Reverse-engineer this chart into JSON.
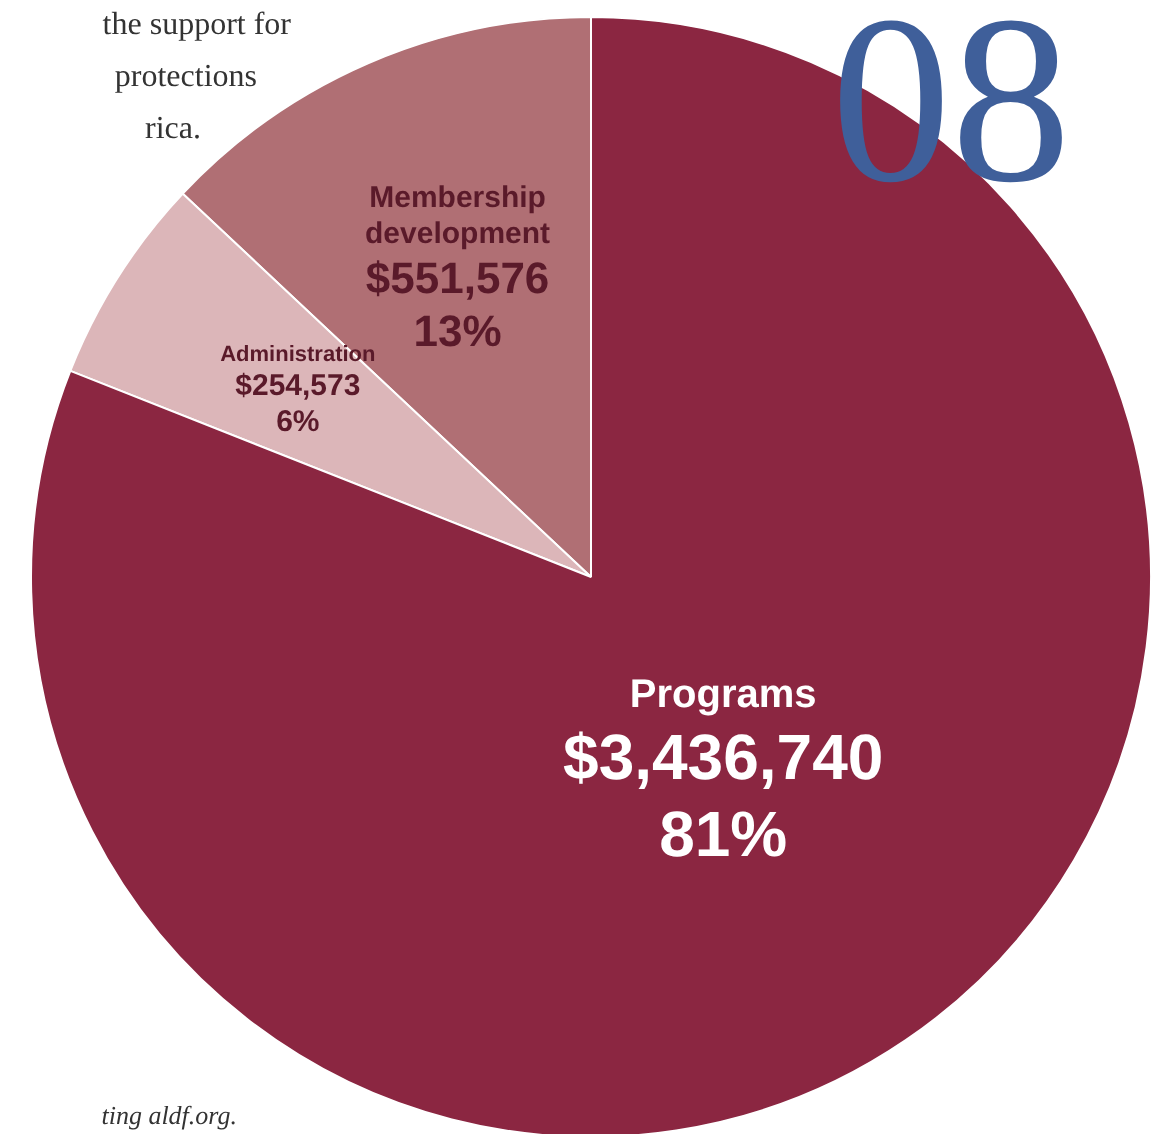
{
  "chart_data": {
    "type": "pie",
    "categories": [
      "Membership development",
      "Administration",
      "Programs"
    ],
    "values": [
      551576,
      254573,
      3436740
    ],
    "colors": [
      "#b06f74",
      "#dcb6b9",
      "#8b2641"
    ],
    "value_labels": [
      "$551,576\n13%",
      "$254,573\n6%",
      "$3,436,740\n81%"
    ],
    "annotations": [
      "the support for",
      "protections",
      "rica.",
      "08",
      "ting aldf.org."
    ]
  }
}
